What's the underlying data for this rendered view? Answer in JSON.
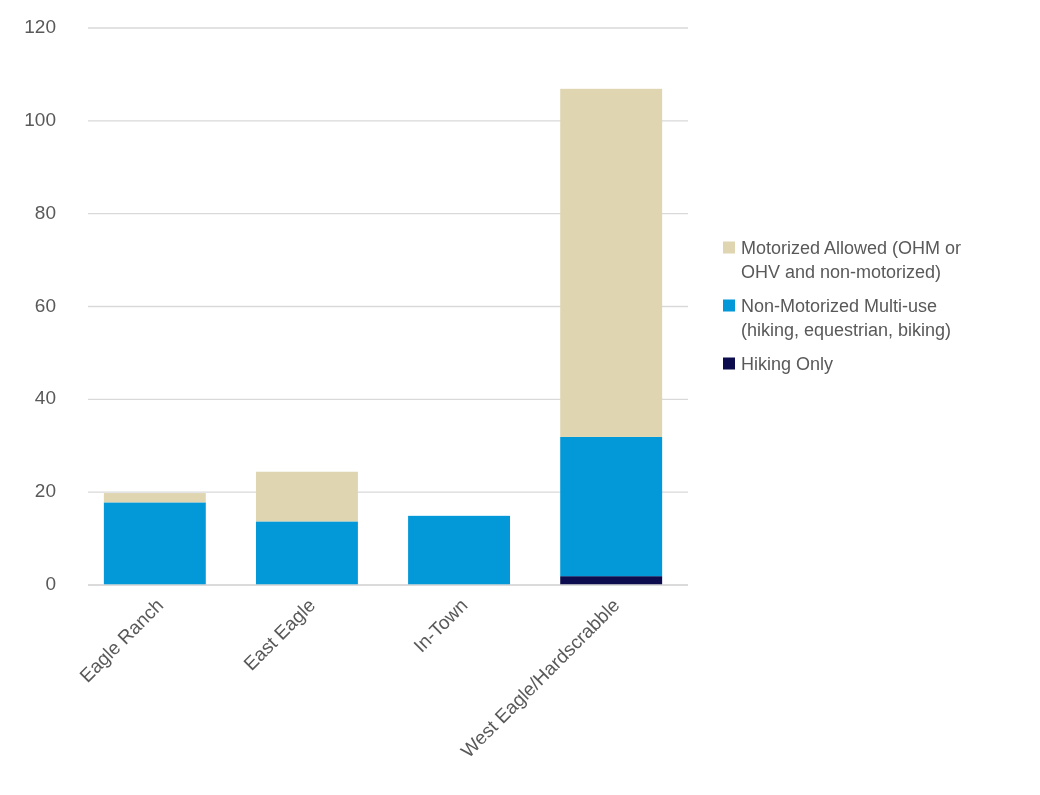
{
  "chart_data": {
    "type": "bar",
    "stacked": true,
    "categories": [
      "Eagle Ranch",
      "East Eagle",
      "In-Town",
      "West Eagle/Hardscrabble"
    ],
    "series": [
      {
        "name": "Hiking Only",
        "color": "#0c0c4e",
        "values": [
          0,
          0,
          0,
          1.9
        ]
      },
      {
        "name": "Non-Motorized Multi-use (hiking, equestrian, biking)",
        "color": "#0398d8",
        "values": [
          17.8,
          13.7,
          14.9,
          30
        ]
      },
      {
        "name": "Motorized Allowed (OHM or OHV and non-motorized)",
        "color": "#dfd5b0",
        "values": [
          2,
          10.7,
          0,
          75
        ]
      }
    ],
    "ylim": [
      0,
      120
    ],
    "yticks": [
      0,
      20,
      40,
      60,
      80,
      100,
      120
    ],
    "grid": "y",
    "legend": "right"
  }
}
